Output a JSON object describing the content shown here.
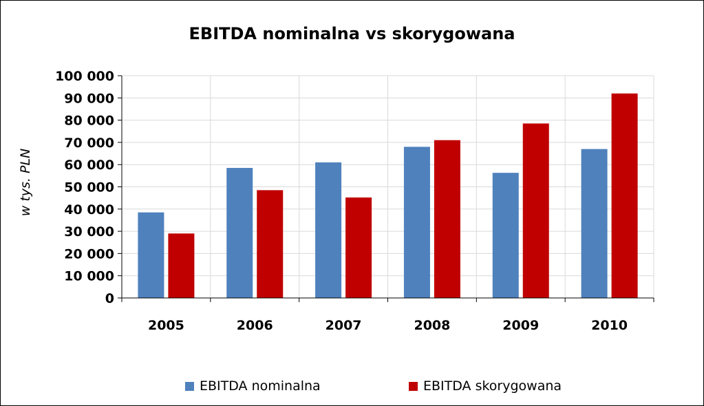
{
  "chart_data": {
    "type": "bar",
    "title": "EBITDA nominalna vs skorygowana",
    "ylabel": "w tys. PLN",
    "xlabel": "",
    "categories": [
      "2005",
      "2006",
      "2007",
      "2008",
      "2009",
      "2010"
    ],
    "series": [
      {
        "name": "EBITDA nominalna",
        "color": "#4F81BD",
        "values": [
          38500,
          58500,
          61000,
          68000,
          56300,
          67000
        ]
      },
      {
        "name": "EBITDA skorygowana",
        "color": "#C00000",
        "values": [
          29000,
          48500,
          45200,
          71000,
          78500,
          92000
        ]
      }
    ],
    "ylim": [
      0,
      100000
    ],
    "yticks": [
      "0",
      "10 000",
      "20 000",
      "30 000",
      "40 000",
      "50 000",
      "60 000",
      "70 000",
      "80 000",
      "90 000",
      "100 000"
    ],
    "grid": true,
    "legend": "bottom"
  }
}
